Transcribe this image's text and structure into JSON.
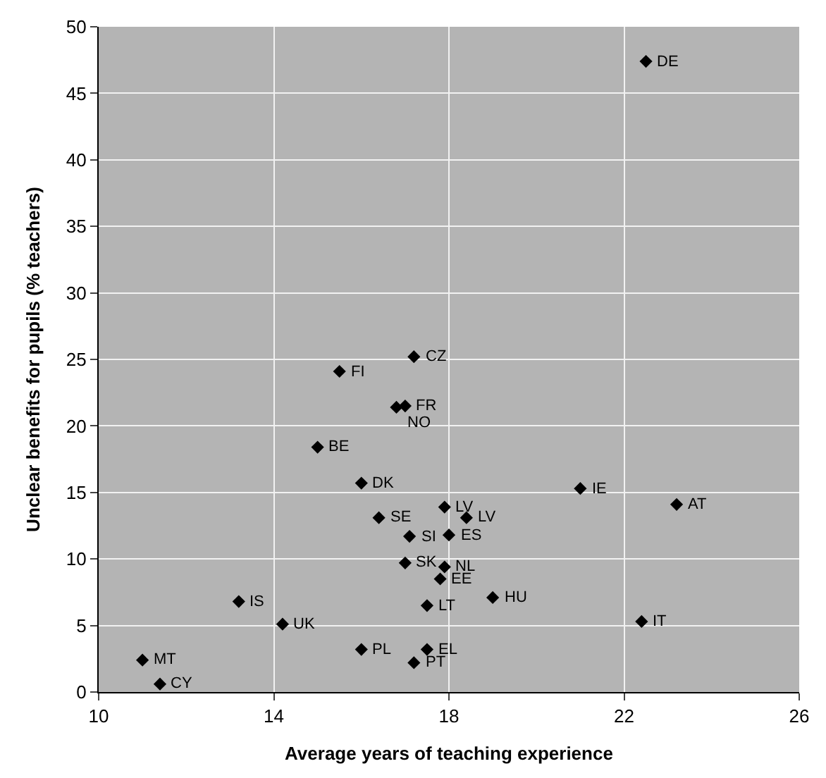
{
  "chart_data": {
    "type": "scatter",
    "xlabel": "Average years of teaching experience",
    "ylabel": "Unclear benefits for pupils (% teachers)",
    "x": [
      22.5,
      17.2,
      15.5,
      17.0,
      16.8,
      15.0,
      16.0,
      16.4,
      17.1,
      17.0,
      13.2,
      14.2,
      16.0,
      11.0,
      11.4,
      17.2,
      17.5,
      17.9,
      18.4,
      18.0,
      17.9,
      17.8,
      19.0,
      17.5,
      21.0,
      23.2,
      22.4
    ],
    "series": [
      {
        "color": "#000000",
        "values": [
          47.4,
          25.2,
          24.1,
          21.5,
          21.4,
          18.4,
          15.7,
          13.1,
          11.7,
          9.7,
          6.8,
          5.1,
          3.2,
          2.4,
          0.6,
          2.2,
          3.2,
          13.9,
          13.1,
          11.8,
          9.4,
          8.5,
          7.1,
          6.5,
          15.3,
          14.1,
          5.3
        ]
      }
    ],
    "annotations": [
      {
        "text": "DE",
        "x": 22.5,
        "y": 47.4
      },
      {
        "text": "CZ",
        "x": 17.2,
        "y": 25.2
      },
      {
        "text": "FI",
        "x": 15.5,
        "y": 24.1
      },
      {
        "text": "FR",
        "x": 17.0,
        "y": 21.5
      },
      {
        "text": "NO",
        "x": 16.8,
        "y": 21.4
      },
      {
        "text": "BE",
        "x": 15.0,
        "y": 18.4
      },
      {
        "text": "DK",
        "x": 16.0,
        "y": 15.7
      },
      {
        "text": "SE",
        "x": 16.4,
        "y": 13.1
      },
      {
        "text": "SI",
        "x": 17.1,
        "y": 11.7
      },
      {
        "text": "SK",
        "x": 17.0,
        "y": 9.7
      },
      {
        "text": "IS",
        "x": 13.2,
        "y": 6.8
      },
      {
        "text": "UK",
        "x": 14.2,
        "y": 5.1
      },
      {
        "text": "PL",
        "x": 16.0,
        "y": 3.2
      },
      {
        "text": "MT",
        "x": 11.0,
        "y": 2.4
      },
      {
        "text": "CY",
        "x": 11.4,
        "y": 0.6
      },
      {
        "text": "PT",
        "x": 17.2,
        "y": 2.2
      },
      {
        "text": "EL",
        "x": 17.5,
        "y": 3.2
      },
      {
        "text": "LV",
        "x": 17.9,
        "y": 13.9
      },
      {
        "text": "LV",
        "x": 18.4,
        "y": 13.1
      },
      {
        "text": "ES",
        "x": 18.0,
        "y": 11.8
      },
      {
        "text": "NL",
        "x": 17.9,
        "y": 9.4
      },
      {
        "text": "EE",
        "x": 17.8,
        "y": 8.5
      },
      {
        "text": "HU",
        "x": 19.0,
        "y": 7.1
      },
      {
        "text": "LT",
        "x": 17.5,
        "y": 6.5
      },
      {
        "text": "IE",
        "x": 21.0,
        "y": 15.3
      },
      {
        "text": "AT",
        "x": 23.2,
        "y": 14.1
      },
      {
        "text": "IT",
        "x": 22.4,
        "y": 5.3
      }
    ],
    "xlim": [
      10,
      26
    ],
    "xticks": [
      10,
      14,
      18,
      22,
      26
    ],
    "ylim": [
      0,
      50
    ],
    "yticks": [
      0,
      5,
      10,
      15,
      20,
      25,
      30,
      35,
      40,
      45,
      50
    ],
    "grid": true,
    "marker": "diamond"
  }
}
